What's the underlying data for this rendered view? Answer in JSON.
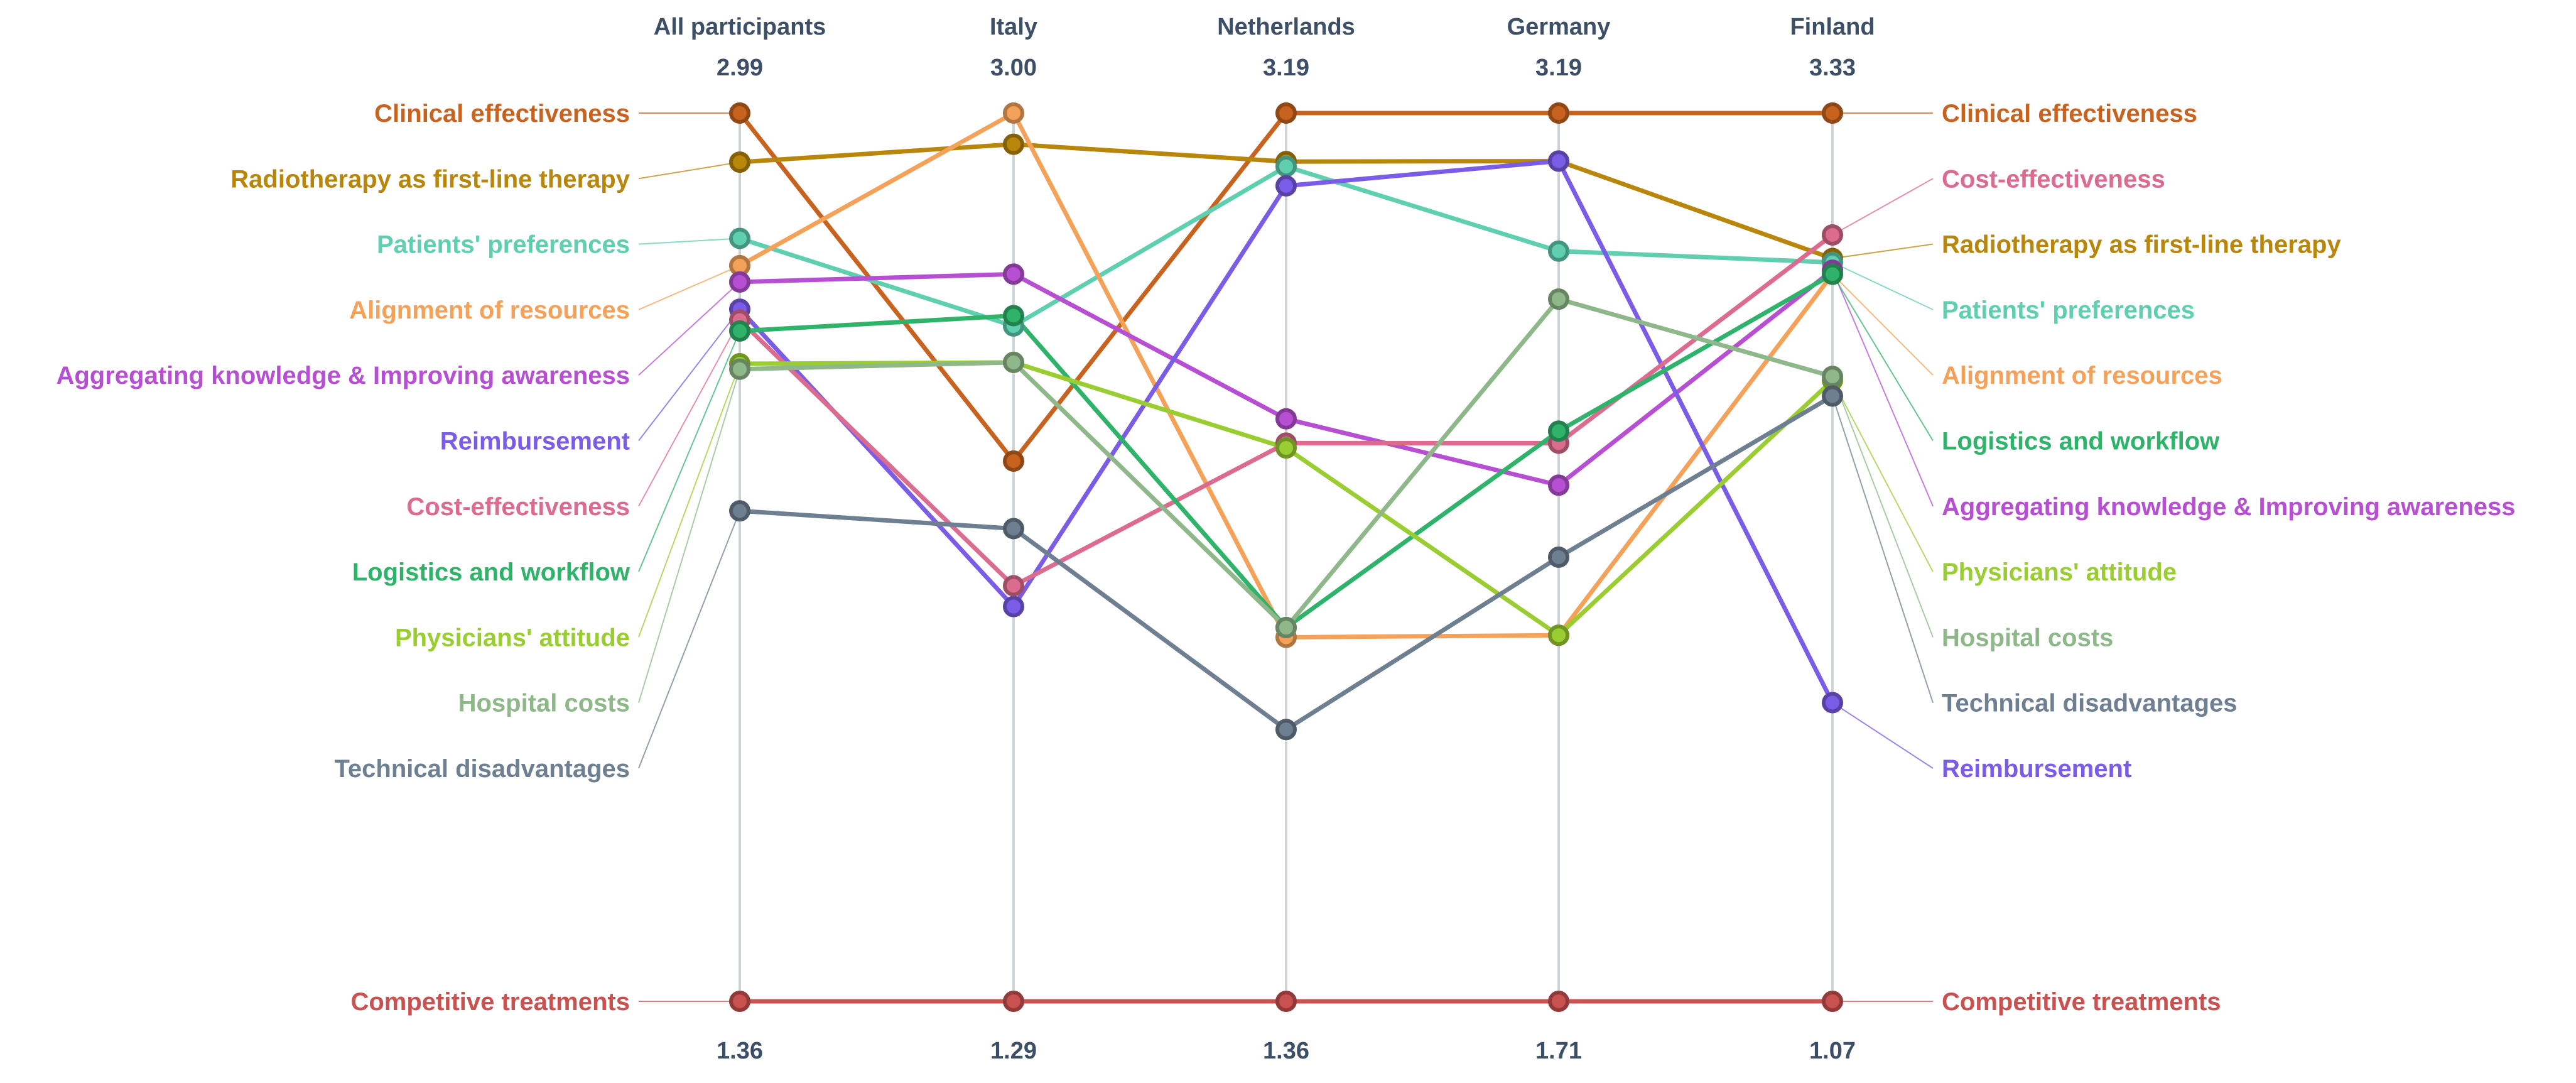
{
  "chart_data": {
    "type": "line",
    "chart_subtype": "slope / parallel-coordinates",
    "categories": [
      "All participants",
      "Italy",
      "Netherlands",
      "Germany",
      "Finland"
    ],
    "axis_max_labels": [
      "2.99",
      "3.00",
      "3.19",
      "3.19",
      "3.33"
    ],
    "axis_min_labels": [
      "1.36",
      "1.29",
      "1.36",
      "1.71",
      "1.07"
    ],
    "axis_max": [
      2.99,
      3.0,
      3.19,
      3.19,
      3.33
    ],
    "axis_min": [
      1.36,
      1.29,
      1.36,
      1.71,
      1.07
    ],
    "left_label_order": [
      "Clinical effectiveness",
      "Radiotherapy as first-line therapy",
      "Patients' preferences",
      "Alignment of resources",
      "Aggregating knowledge & Improving awareness",
      "Reimbursement",
      "Cost-effectiveness",
      "Logistics and workflow",
      "Physicians' attitude",
      "Hospital costs",
      "Technical disadvantages",
      "Competitive treatments"
    ],
    "right_label_order": [
      "Clinical effectiveness",
      "Cost-effectiveness",
      "Radiotherapy as first-line therapy",
      "Patients' preferences",
      "Alignment of resources",
      "Logistics and workflow",
      "Aggregating knowledge & Improving awareness",
      "Physicians' attitude",
      "Hospital costs",
      "Technical disadvantages",
      "Reimbursement",
      "Competitive treatments"
    ],
    "series": [
      {
        "name": "Clinical effectiveness",
        "color": "#c8621f",
        "values": [
          2.99,
          2.33,
          3.19,
          3.19,
          3.33
        ]
      },
      {
        "name": "Radiotherapy as first-line therapy",
        "color": "#b8860b",
        "values": [
          2.9,
          2.94,
          3.09,
          3.11,
          2.96
        ]
      },
      {
        "name": "Patients' preferences",
        "color": "#5fcfb0",
        "values": [
          2.76,
          2.59,
          3.08,
          2.96,
          2.95
        ]
      },
      {
        "name": "Alignment of resources",
        "color": "#f4a25a",
        "values": [
          2.71,
          3.0,
          2.11,
          2.32,
          2.92
        ]
      },
      {
        "name": "Aggregating knowledge & Improving awareness",
        "color": "#b64fd1",
        "values": [
          2.68,
          2.69,
          2.56,
          2.57,
          2.93
        ]
      },
      {
        "name": "Reimbursement",
        "color": "#7a5ce6",
        "values": [
          2.63,
          2.05,
          3.04,
          3.11,
          1.83
        ]
      },
      {
        "name": "Cost-effectiveness",
        "color": "#db6b8f",
        "values": [
          2.61,
          2.09,
          2.51,
          2.64,
          3.02
        ]
      },
      {
        "name": "Logistics and workflow",
        "color": "#2fb36a",
        "values": [
          2.59,
          2.61,
          2.13,
          2.66,
          2.92
        ]
      },
      {
        "name": "Physicians' attitude",
        "color": "#9acd32",
        "values": [
          2.53,
          2.52,
          2.5,
          2.32,
          2.65
        ]
      },
      {
        "name": "Hospital costs",
        "color": "#8fb88a",
        "values": [
          2.52,
          2.52,
          2.13,
          2.88,
          2.66
        ]
      },
      {
        "name": "Technical disadvantages",
        "color": "#6e7f91",
        "values": [
          2.26,
          2.2,
          1.92,
          2.45,
          2.61
        ]
      },
      {
        "name": "Competitive treatments",
        "color": "#c9514f",
        "values": [
          1.36,
          1.29,
          1.36,
          1.71,
          1.07
        ]
      }
    ]
  }
}
